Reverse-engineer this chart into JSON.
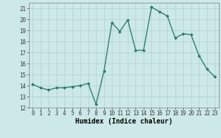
{
  "x": [
    0,
    1,
    2,
    3,
    4,
    5,
    6,
    7,
    8,
    9,
    10,
    11,
    12,
    13,
    14,
    15,
    16,
    17,
    18,
    19,
    20,
    21,
    22,
    23
  ],
  "y": [
    14.1,
    13.8,
    13.6,
    13.8,
    13.8,
    13.9,
    14.0,
    14.2,
    12.3,
    15.3,
    19.7,
    18.9,
    19.95,
    17.2,
    17.2,
    21.1,
    20.7,
    20.3,
    18.3,
    18.7,
    18.6,
    16.7,
    15.5,
    14.8
  ],
  "line_color": "#2a7a6a",
  "marker": "D",
  "marker_size": 2.0,
  "bg_color": "#cce8e8",
  "grid_color": "#b0d0d0",
  "xlabel": "Humidex (Indice chaleur)",
  "ylim": [
    12,
    21.5
  ],
  "xlim": [
    -0.5,
    23.5
  ],
  "yticks": [
    12,
    13,
    14,
    15,
    16,
    17,
    18,
    19,
    20,
    21
  ],
  "xticks": [
    0,
    1,
    2,
    3,
    4,
    5,
    6,
    7,
    8,
    9,
    10,
    11,
    12,
    13,
    14,
    15,
    16,
    17,
    18,
    19,
    20,
    21,
    22,
    23
  ],
  "tick_fontsize": 5.5,
  "xlabel_fontsize": 7.0,
  "line_width": 1.0
}
